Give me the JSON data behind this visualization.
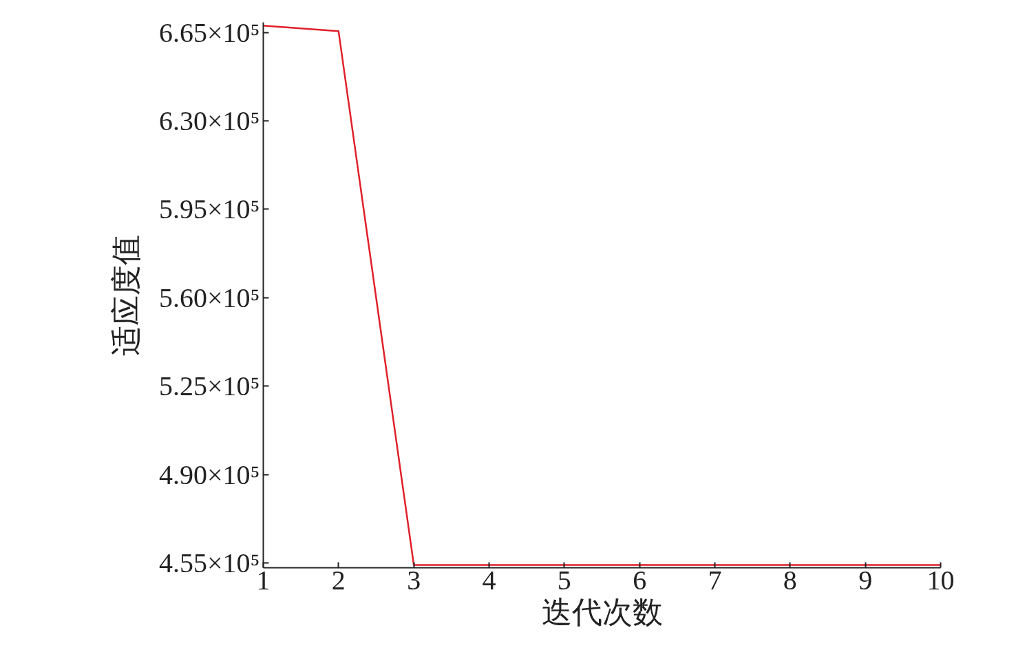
{
  "chart_data": {
    "type": "line",
    "xlabel": "迭代次数",
    "ylabel": "适应度值",
    "x": [
      1,
      2,
      3,
      4,
      5,
      6,
      7,
      8,
      9,
      10
    ],
    "series": [
      {
        "color": "#e0202a",
        "values": [
          667700,
          665500,
          454200,
          454200,
          454200,
          454200,
          454200,
          454200,
          454200,
          454200
        ]
      }
    ],
    "xlim": [
      1,
      10
    ],
    "xticks": [
      1,
      2,
      3,
      4,
      5,
      6,
      7,
      8,
      9,
      10
    ],
    "ylim": [
      453100,
      669000
    ],
    "yticks": [
      {
        "value": 455000,
        "label": "4.55×10⁵"
      },
      {
        "value": 490000,
        "label": "4.90×10⁵"
      },
      {
        "value": 525000,
        "label": "5.25×10⁵"
      },
      {
        "value": 560000,
        "label": "5.60×10⁵"
      },
      {
        "value": 595000,
        "label": "5.95×10⁵"
      },
      {
        "value": 630000,
        "label": "6.30×10⁵"
      },
      {
        "value": 665000,
        "label": "6.65×10⁵"
      }
    ],
    "grid": false,
    "marker": "none",
    "line_style": "solid"
  }
}
